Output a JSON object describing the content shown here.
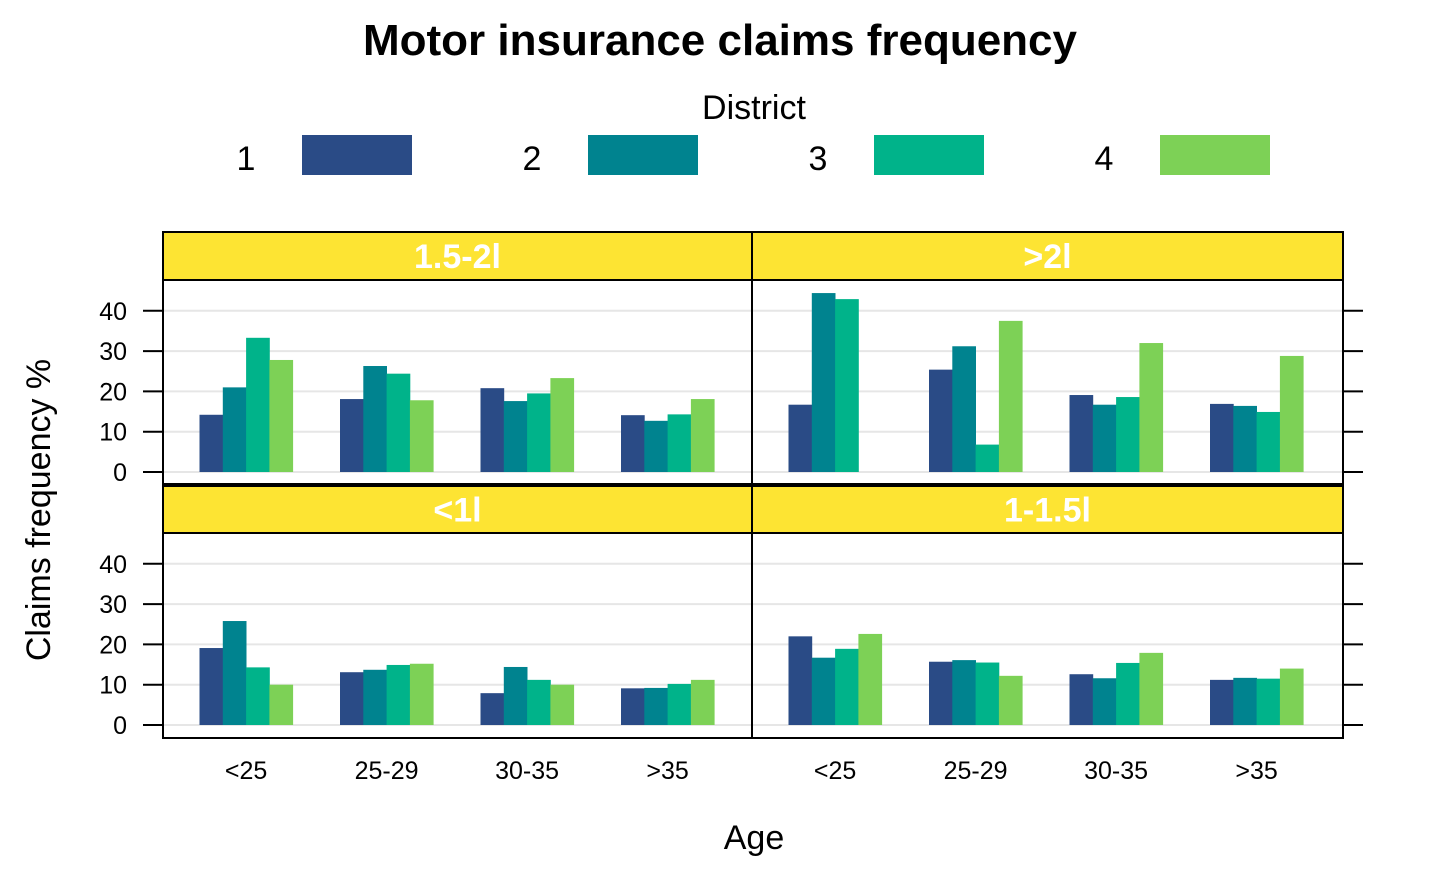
{
  "chart_data": {
    "type": "bar",
    "title": "Motor insurance claims frequency",
    "xlabel": "Age",
    "ylabel": "Claims frequency %",
    "ylim": [
      0,
      45
    ],
    "yticks": [
      0,
      10,
      20,
      30,
      40
    ],
    "grid": true,
    "legend": {
      "title": "District",
      "placement": "top",
      "entries": [
        "1",
        "2",
        "3",
        "4"
      ]
    },
    "categories": [
      "<25",
      "25-29",
      "30-35",
      ">35"
    ],
    "series_colors": [
      "#2a4b86",
      "#00838f",
      "#00b38a",
      "#7dd156"
    ],
    "strip_color": "#fde433",
    "panels": [
      {
        "label": "1.5-2l",
        "series": [
          {
            "name": "1",
            "values": [
              14.2,
              18.1,
              20.8,
              14.1
            ]
          },
          {
            "name": "2",
            "values": [
              21.0,
              26.3,
              17.6,
              12.7
            ]
          },
          {
            "name": "3",
            "values": [
              33.3,
              24.4,
              19.5,
              14.3
            ]
          },
          {
            "name": "4",
            "values": [
              27.8,
              17.8,
              23.3,
              18.1
            ]
          }
        ]
      },
      {
        "label": ">2l",
        "series": [
          {
            "name": "1",
            "values": [
              16.7,
              25.4,
              19.1,
              16.9
            ]
          },
          {
            "name": "2",
            "values": [
              44.4,
              31.2,
              16.7,
              16.4
            ]
          },
          {
            "name": "3",
            "values": [
              42.9,
              6.8,
              18.6,
              14.9
            ]
          },
          {
            "name": "4",
            "values": [
              0,
              37.5,
              32.0,
              28.8
            ]
          }
        ]
      },
      {
        "label": "<1l",
        "series": [
          {
            "name": "1",
            "values": [
              19.1,
              13.1,
              7.9,
              9.1
            ]
          },
          {
            "name": "2",
            "values": [
              25.8,
              13.7,
              14.4,
              9.2
            ]
          },
          {
            "name": "3",
            "values": [
              14.3,
              14.9,
              11.2,
              10.2
            ]
          },
          {
            "name": "4",
            "values": [
              10.0,
              15.2,
              10.0,
              11.2
            ]
          }
        ]
      },
      {
        "label": "1-1.5l",
        "series": [
          {
            "name": "1",
            "values": [
              22.0,
              15.7,
              12.6,
              11.2
            ]
          },
          {
            "name": "2",
            "values": [
              16.7,
              16.1,
              11.6,
              11.7
            ]
          },
          {
            "name": "3",
            "values": [
              18.9,
              15.5,
              15.4,
              11.5
            ]
          },
          {
            "name": "4",
            "values": [
              22.6,
              12.2,
              17.9,
              14.0
            ]
          }
        ]
      }
    ]
  }
}
